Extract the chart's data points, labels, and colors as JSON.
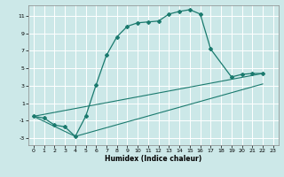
{
  "xlabel": "Humidex (Indice chaleur)",
  "bg_color": "#cce8e8",
  "line_color": "#1a7a6e",
  "grid_color": "#ffffff",
  "xlim": [
    -0.5,
    23.5
  ],
  "ylim": [
    -3.8,
    12.2
  ],
  "yticks": [
    -3,
    -1,
    1,
    3,
    5,
    7,
    9,
    11
  ],
  "xticks": [
    0,
    1,
    2,
    3,
    4,
    5,
    6,
    7,
    8,
    9,
    10,
    11,
    12,
    13,
    14,
    15,
    16,
    17,
    18,
    19,
    20,
    21,
    22,
    23
  ],
  "line1_x": [
    0,
    1,
    2,
    3,
    4,
    5,
    6,
    7,
    8,
    9,
    10,
    11,
    12,
    13,
    14,
    15,
    16,
    17,
    19,
    20,
    21,
    22
  ],
  "line1_y": [
    -0.5,
    -0.7,
    -1.5,
    -1.7,
    -2.8,
    -0.5,
    3.1,
    6.5,
    8.6,
    9.8,
    10.2,
    10.3,
    10.4,
    11.2,
    11.5,
    11.7,
    11.2,
    7.2,
    4.0,
    4.3,
    4.4,
    4.4
  ],
  "line2_x": [
    0,
    22
  ],
  "line2_y": [
    -0.5,
    4.4
  ],
  "line3_x": [
    0,
    4,
    22
  ],
  "line3_y": [
    -0.5,
    -2.8,
    3.2
  ],
  "xlabel_fontsize": 5.5,
  "tick_fontsize": 4.5
}
